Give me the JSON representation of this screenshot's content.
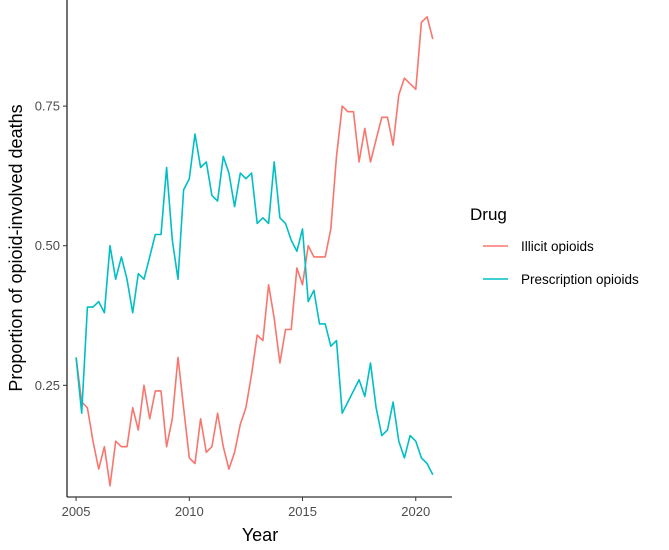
{
  "chart_data": {
    "type": "line",
    "xlabel": "Year",
    "ylabel": "Proportion of opioid-involved deaths",
    "xlim": [
      2004.6,
      2021.6
    ],
    "ylim": [
      0.05,
      0.94
    ],
    "x_ticks": [
      2005,
      2010,
      2015,
      2020
    ],
    "x_tick_labels": [
      "2005",
      "2010",
      "2015",
      "2020"
    ],
    "y_ticks": [
      0.25,
      0.5,
      0.75
    ],
    "y_tick_labels": [
      "0.25",
      "0.50",
      "0.75"
    ],
    "grid": false,
    "legend": {
      "title": "Drug",
      "position": "right"
    },
    "x": [
      2005.0,
      2005.25,
      2005.5,
      2005.75,
      2006.0,
      2006.25,
      2006.5,
      2006.75,
      2007.0,
      2007.25,
      2007.5,
      2007.75,
      2008.0,
      2008.25,
      2008.5,
      2008.75,
      2009.0,
      2009.25,
      2009.5,
      2009.75,
      2010.0,
      2010.25,
      2010.5,
      2010.75,
      2011.0,
      2011.25,
      2011.5,
      2011.75,
      2012.0,
      2012.25,
      2012.5,
      2012.75,
      2013.0,
      2013.25,
      2013.5,
      2013.75,
      2014.0,
      2014.25,
      2014.5,
      2014.75,
      2015.0,
      2015.25,
      2015.5,
      2015.75,
      2016.0,
      2016.25,
      2016.5,
      2016.75,
      2017.0,
      2017.25,
      2017.5,
      2017.75,
      2018.0,
      2018.25,
      2018.5,
      2018.75,
      2019.0,
      2019.25,
      2019.5,
      2019.75,
      2020.0,
      2020.25,
      2020.5,
      2020.75
    ],
    "series": [
      {
        "name": "Illicit opioids",
        "color": "#F8766D",
        "values": [
          0.3,
          0.22,
          0.21,
          0.15,
          0.1,
          0.14,
          0.07,
          0.15,
          0.14,
          0.14,
          0.21,
          0.17,
          0.25,
          0.19,
          0.24,
          0.24,
          0.14,
          0.19,
          0.3,
          0.21,
          0.12,
          0.11,
          0.19,
          0.13,
          0.14,
          0.2,
          0.14,
          0.1,
          0.13,
          0.18,
          0.21,
          0.27,
          0.34,
          0.33,
          0.43,
          0.37,
          0.29,
          0.35,
          0.35,
          0.46,
          0.43,
          0.5,
          0.48,
          0.48,
          0.48,
          0.53,
          0.66,
          0.75,
          0.74,
          0.74,
          0.65,
          0.71,
          0.65,
          0.69,
          0.73,
          0.73,
          0.68,
          0.77,
          0.8,
          0.79,
          0.78,
          0.9,
          0.91,
          0.87
        ]
      },
      {
        "name": "Prescription opioids",
        "color": "#00BFC4",
        "values": [
          0.3,
          0.2,
          0.39,
          0.39,
          0.4,
          0.38,
          0.5,
          0.44,
          0.48,
          0.44,
          0.38,
          0.45,
          0.44,
          0.48,
          0.52,
          0.52,
          0.64,
          0.51,
          0.44,
          0.6,
          0.62,
          0.7,
          0.64,
          0.65,
          0.59,
          0.58,
          0.66,
          0.63,
          0.57,
          0.63,
          0.62,
          0.63,
          0.54,
          0.55,
          0.54,
          0.65,
          0.55,
          0.54,
          0.51,
          0.49,
          0.53,
          0.4,
          0.42,
          0.36,
          0.36,
          0.32,
          0.33,
          0.2,
          0.22,
          0.24,
          0.26,
          0.23,
          0.29,
          0.21,
          0.16,
          0.17,
          0.22,
          0.15,
          0.12,
          0.16,
          0.15,
          0.12,
          0.11,
          0.09
        ]
      }
    ]
  }
}
